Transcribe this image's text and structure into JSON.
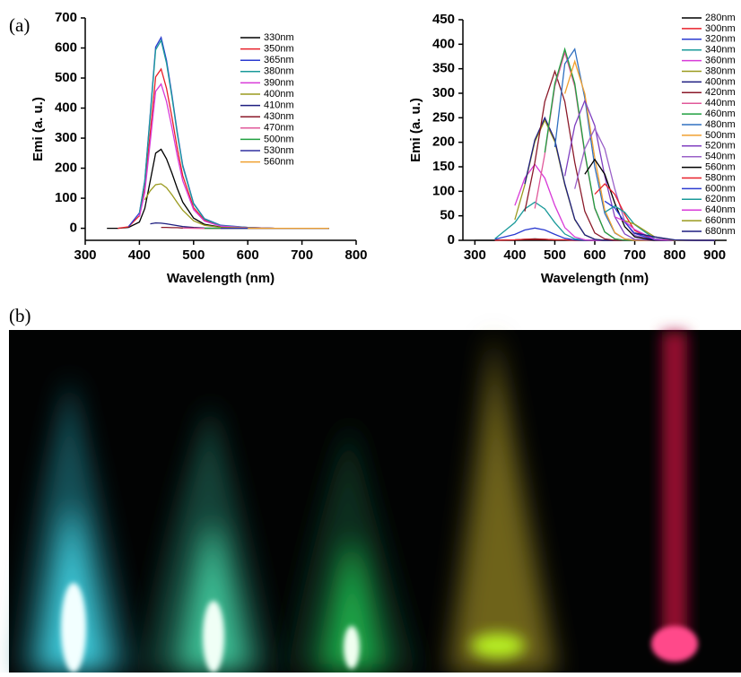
{
  "panel_labels": [
    "(a)",
    "(b)"
  ],
  "chart_data": [
    {
      "type": "line",
      "xlabel": "Wavelength (nm)",
      "ylabel": "Emi (a. u.)",
      "xlim": [
        300,
        800
      ],
      "xticks": [
        300,
        400,
        500,
        600,
        700,
        800
      ],
      "ylim": [
        -40,
        700
      ],
      "yticks": [
        0,
        100,
        200,
        300,
        400,
        500,
        600,
        700
      ],
      "legend": "upper right",
      "x": [
        340,
        360,
        380,
        400,
        410,
        420,
        430,
        440,
        450,
        460,
        470,
        480,
        500,
        520,
        550,
        600,
        650,
        700,
        750
      ],
      "series": [
        {
          "name": "330nm",
          "color": "#000000",
          "values": [
            0,
            0,
            3,
            21,
            66,
            158,
            250,
            263,
            231,
            184,
            132,
            87,
            34,
            13,
            4,
            1,
            0,
            0,
            0
          ]
        },
        {
          "name": "350nm",
          "color": "#e8202a",
          "values": [
            null,
            0,
            5,
            42,
            133,
            318,
            504,
            530,
            466,
            371,
            265,
            175,
            69,
            27,
            8,
            3,
            0,
            0,
            0
          ]
        },
        {
          "name": "365nm",
          "color": "#2b3bd0",
          "values": [
            null,
            null,
            6,
            51,
            159,
            381,
            603,
            635,
            559,
            445,
            318,
            210,
            83,
            32,
            10,
            3,
            0,
            0,
            0
          ]
        },
        {
          "name": "380nm",
          "color": "#1a9a9a",
          "values": [
            null,
            null,
            null,
            50,
            156,
            375,
            594,
            625,
            550,
            438,
            313,
            206,
            81,
            31,
            9,
            3,
            0,
            0,
            0
          ]
        },
        {
          "name": "390nm",
          "color": "#d83ad8",
          "values": [
            null,
            null,
            null,
            38,
            120,
            288,
            456,
            480,
            422,
            336,
            240,
            158,
            62,
            24,
            7,
            2,
            0,
            0,
            0
          ]
        },
        {
          "name": "400nm",
          "color": "#9a9a1e",
          "values": [
            null,
            null,
            null,
            null,
            95,
            125,
            145,
            148,
            135,
            112,
            85,
            60,
            25,
            10,
            3,
            1,
            0,
            0,
            0
          ]
        },
        {
          "name": "410nm",
          "color": "#1e1e80",
          "values": [
            null,
            null,
            null,
            null,
            null,
            15,
            18,
            17,
            15,
            12,
            9,
            6,
            3,
            1,
            0,
            0,
            0,
            0,
            0
          ]
        },
        {
          "name": "430nm",
          "color": "#8b1a2a",
          "values": [
            null,
            null,
            null,
            null,
            null,
            null,
            null,
            3,
            3,
            2,
            2,
            1,
            1,
            0,
            0,
            0,
            0,
            0,
            0
          ]
        },
        {
          "name": "470nm",
          "color": "#e0589a",
          "values": [
            null,
            null,
            null,
            null,
            null,
            null,
            null,
            null,
            null,
            null,
            null,
            1,
            0,
            0,
            0,
            0,
            0,
            0,
            0
          ]
        },
        {
          "name": "500nm",
          "color": "#20a040",
          "values": [
            null,
            null,
            null,
            null,
            null,
            null,
            null,
            null,
            null,
            null,
            null,
            null,
            null,
            0,
            0,
            0,
            0,
            0,
            0
          ]
        },
        {
          "name": "530nm",
          "color": "#3030a0",
          "values": [
            null,
            null,
            null,
            null,
            null,
            null,
            null,
            null,
            null,
            null,
            null,
            null,
            null,
            null,
            0,
            0,
            0,
            0,
            0
          ]
        },
        {
          "name": "560nm",
          "color": "#f0a030",
          "values": [
            null,
            null,
            null,
            null,
            null,
            null,
            null,
            null,
            null,
            null,
            null,
            null,
            null,
            null,
            null,
            0,
            0,
            0,
            0
          ]
        }
      ]
    },
    {
      "type": "line",
      "xlabel": "Wavelength (nm)",
      "ylabel": "Emi (a. u.)",
      "xlim": [
        270,
        930
      ],
      "xticks": [
        300,
        400,
        500,
        600,
        700,
        800,
        900
      ],
      "ylim": [
        0,
        450
      ],
      "yticks": [
        0,
        50,
        100,
        150,
        200,
        250,
        300,
        350,
        400,
        450
      ],
      "legend": "upper right",
      "x": [
        300,
        350,
        400,
        425,
        450,
        475,
        500,
        525,
        550,
        575,
        600,
        625,
        650,
        675,
        700,
        750,
        800,
        850,
        900
      ],
      "series": [
        {
          "name": "280nm",
          "color": "#000000",
          "values": [
            0,
            0,
            1,
            2,
            3,
            2,
            1,
            1,
            0,
            0,
            0,
            0,
            0,
            0,
            0,
            0,
            0,
            0,
            0
          ]
        },
        {
          "name": "300nm",
          "color": "#e8202a",
          "values": [
            null,
            0,
            1,
            2,
            2,
            2,
            1,
            1,
            0,
            0,
            0,
            0,
            0,
            0,
            0,
            0,
            0,
            0,
            0
          ]
        },
        {
          "name": "320nm",
          "color": "#2b3bd0",
          "values": [
            null,
            2,
            12,
            21,
            25,
            21,
            12,
            4,
            1,
            0,
            0,
            0,
            0,
            0,
            0,
            0,
            0,
            0,
            0
          ]
        },
        {
          "name": "340nm",
          "color": "#1a9a9a",
          "values": [
            null,
            3,
            36,
            64,
            78,
            64,
            36,
            13,
            3,
            1,
            0,
            0,
            0,
            0,
            0,
            0,
            0,
            0,
            0
          ]
        },
        {
          "name": "360nm",
          "color": "#d83ad8",
          "values": [
            null,
            null,
            71,
            127,
            155,
            127,
            71,
            26,
            7,
            1,
            0,
            0,
            0,
            0,
            0,
            0,
            0,
            0,
            0
          ]
        },
        {
          "name": "380nm",
          "color": "#9a9a1e",
          "values": [
            null,
            null,
            42,
            113,
            201,
            245,
            201,
            113,
            42,
            11,
            2,
            0,
            0,
            0,
            0,
            0,
            0,
            0,
            0
          ]
        },
        {
          "name": "400nm",
          "color": "#1e1e80",
          "values": [
            null,
            null,
            null,
            115,
            205,
            250,
            205,
            115,
            43,
            11,
            2,
            0,
            0,
            0,
            0,
            0,
            0,
            0,
            0
          ]
        },
        {
          "name": "420nm",
          "color": "#8b1a2a",
          "values": [
            null,
            null,
            null,
            59,
            159,
            283,
            345,
            283,
            159,
            59,
            15,
            3,
            0,
            0,
            0,
            0,
            0,
            0,
            0
          ]
        },
        {
          "name": "440nm",
          "color": "#e0589a",
          "values": [
            null,
            null,
            null,
            null,
            65,
            176,
            314,
            383,
            314,
            176,
            65,
            17,
            3,
            0,
            0,
            0,
            0,
            0,
            0
          ]
        },
        {
          "name": "460nm",
          "color": "#20a040",
          "values": [
            null,
            null,
            null,
            null,
            null,
            179,
            320,
            390,
            320,
            179,
            66,
            17,
            3,
            0,
            0,
            0,
            0,
            0,
            0
          ]
        },
        {
          "name": "480nm",
          "color": "#3070c0",
          "values": [
            null,
            null,
            null,
            null,
            null,
            null,
            190,
            360,
            390,
            290,
            150,
            55,
            15,
            3,
            1,
            0,
            0,
            0,
            0
          ]
        },
        {
          "name": "500nm",
          "color": "#f0a030",
          "values": [
            null,
            null,
            null,
            null,
            null,
            null,
            null,
            299,
            365,
            299,
            168,
            62,
            16,
            3,
            0,
            0,
            0,
            0,
            0
          ]
        },
        {
          "name": "520nm",
          "color": "#8040c0",
          "values": [
            null,
            null,
            null,
            null,
            null,
            null,
            null,
            131,
            234,
            285,
            234,
            131,
            48,
            13,
            2,
            0,
            0,
            0,
            0
          ]
        },
        {
          "name": "540nm",
          "color": "#9a60c8",
          "values": [
            null,
            null,
            null,
            null,
            null,
            null,
            null,
            null,
            105,
            187,
            228,
            187,
            105,
            39,
            10,
            0,
            0,
            0,
            0
          ]
        },
        {
          "name": "560nm",
          "color": "#000000",
          "values": [
            null,
            null,
            null,
            null,
            null,
            null,
            null,
            null,
            null,
            135,
            165,
            135,
            76,
            28,
            7,
            0,
            0,
            0,
            0
          ]
        },
        {
          "name": "580nm",
          "color": "#e8202a",
          "values": [
            null,
            null,
            null,
            null,
            null,
            null,
            null,
            null,
            null,
            null,
            94,
            115,
            94,
            53,
            20,
            1,
            0,
            0,
            0
          ]
        },
        {
          "name": "600nm",
          "color": "#2b3bd0",
          "values": [
            null,
            null,
            null,
            null,
            null,
            null,
            null,
            null,
            null,
            null,
            null,
            80,
            66,
            37,
            14,
            1,
            0,
            0,
            0
          ]
        },
        {
          "name": "620nm",
          "color": "#1a9a9a",
          "values": [
            null,
            null,
            null,
            null,
            null,
            null,
            null,
            null,
            null,
            null,
            null,
            57,
            70,
            57,
            32,
            3,
            0,
            0,
            0
          ]
        },
        {
          "name": "640nm",
          "color": "#d83ad8",
          "values": [
            null,
            null,
            null,
            null,
            null,
            null,
            null,
            null,
            null,
            null,
            null,
            null,
            48,
            39,
            22,
            2,
            0,
            0,
            0
          ]
        },
        {
          "name": "660nm",
          "color": "#9a9a1e",
          "values": [
            null,
            null,
            null,
            null,
            null,
            null,
            null,
            null,
            null,
            null,
            null,
            null,
            null,
            40,
            33,
            7,
            0,
            0,
            0
          ]
        },
        {
          "name": "680nm",
          "color": "#1e1e80",
          "values": [
            null,
            null,
            null,
            null,
            null,
            null,
            null,
            null,
            null,
            null,
            null,
            null,
            null,
            null,
            15,
            7,
            1,
            0,
            0
          ]
        }
      ]
    }
  ]
}
